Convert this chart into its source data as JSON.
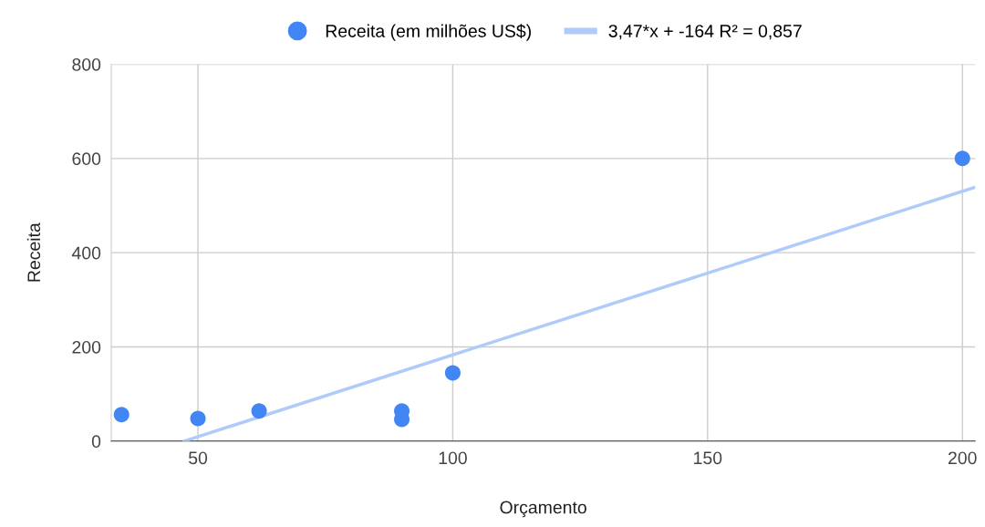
{
  "chart_data": {
    "type": "scatter",
    "xlabel": "Orçamento",
    "ylabel": "Receita",
    "xlim": [
      33,
      202.5
    ],
    "xticks": [
      50,
      100,
      150,
      200
    ],
    "ylim": [
      0,
      800
    ],
    "yticks": [
      0,
      200,
      400,
      600,
      800
    ],
    "grid": true,
    "legend": "top",
    "marker": "circle",
    "series": [
      {
        "name": "Receita (em milhões US$)",
        "color": "#4285f4",
        "x": [
          35,
          50,
          62,
          90,
          90,
          100,
          200
        ],
        "values": [
          56,
          48,
          64,
          64,
          46,
          145,
          600
        ]
      },
      {
        "name": "3,47*x + -164 R² = 0,857",
        "type": "line",
        "marker": "none",
        "color": "#aecbfa",
        "x": [
          47.3,
          202.5
        ],
        "values": [
          0,
          539
        ]
      }
    ]
  }
}
